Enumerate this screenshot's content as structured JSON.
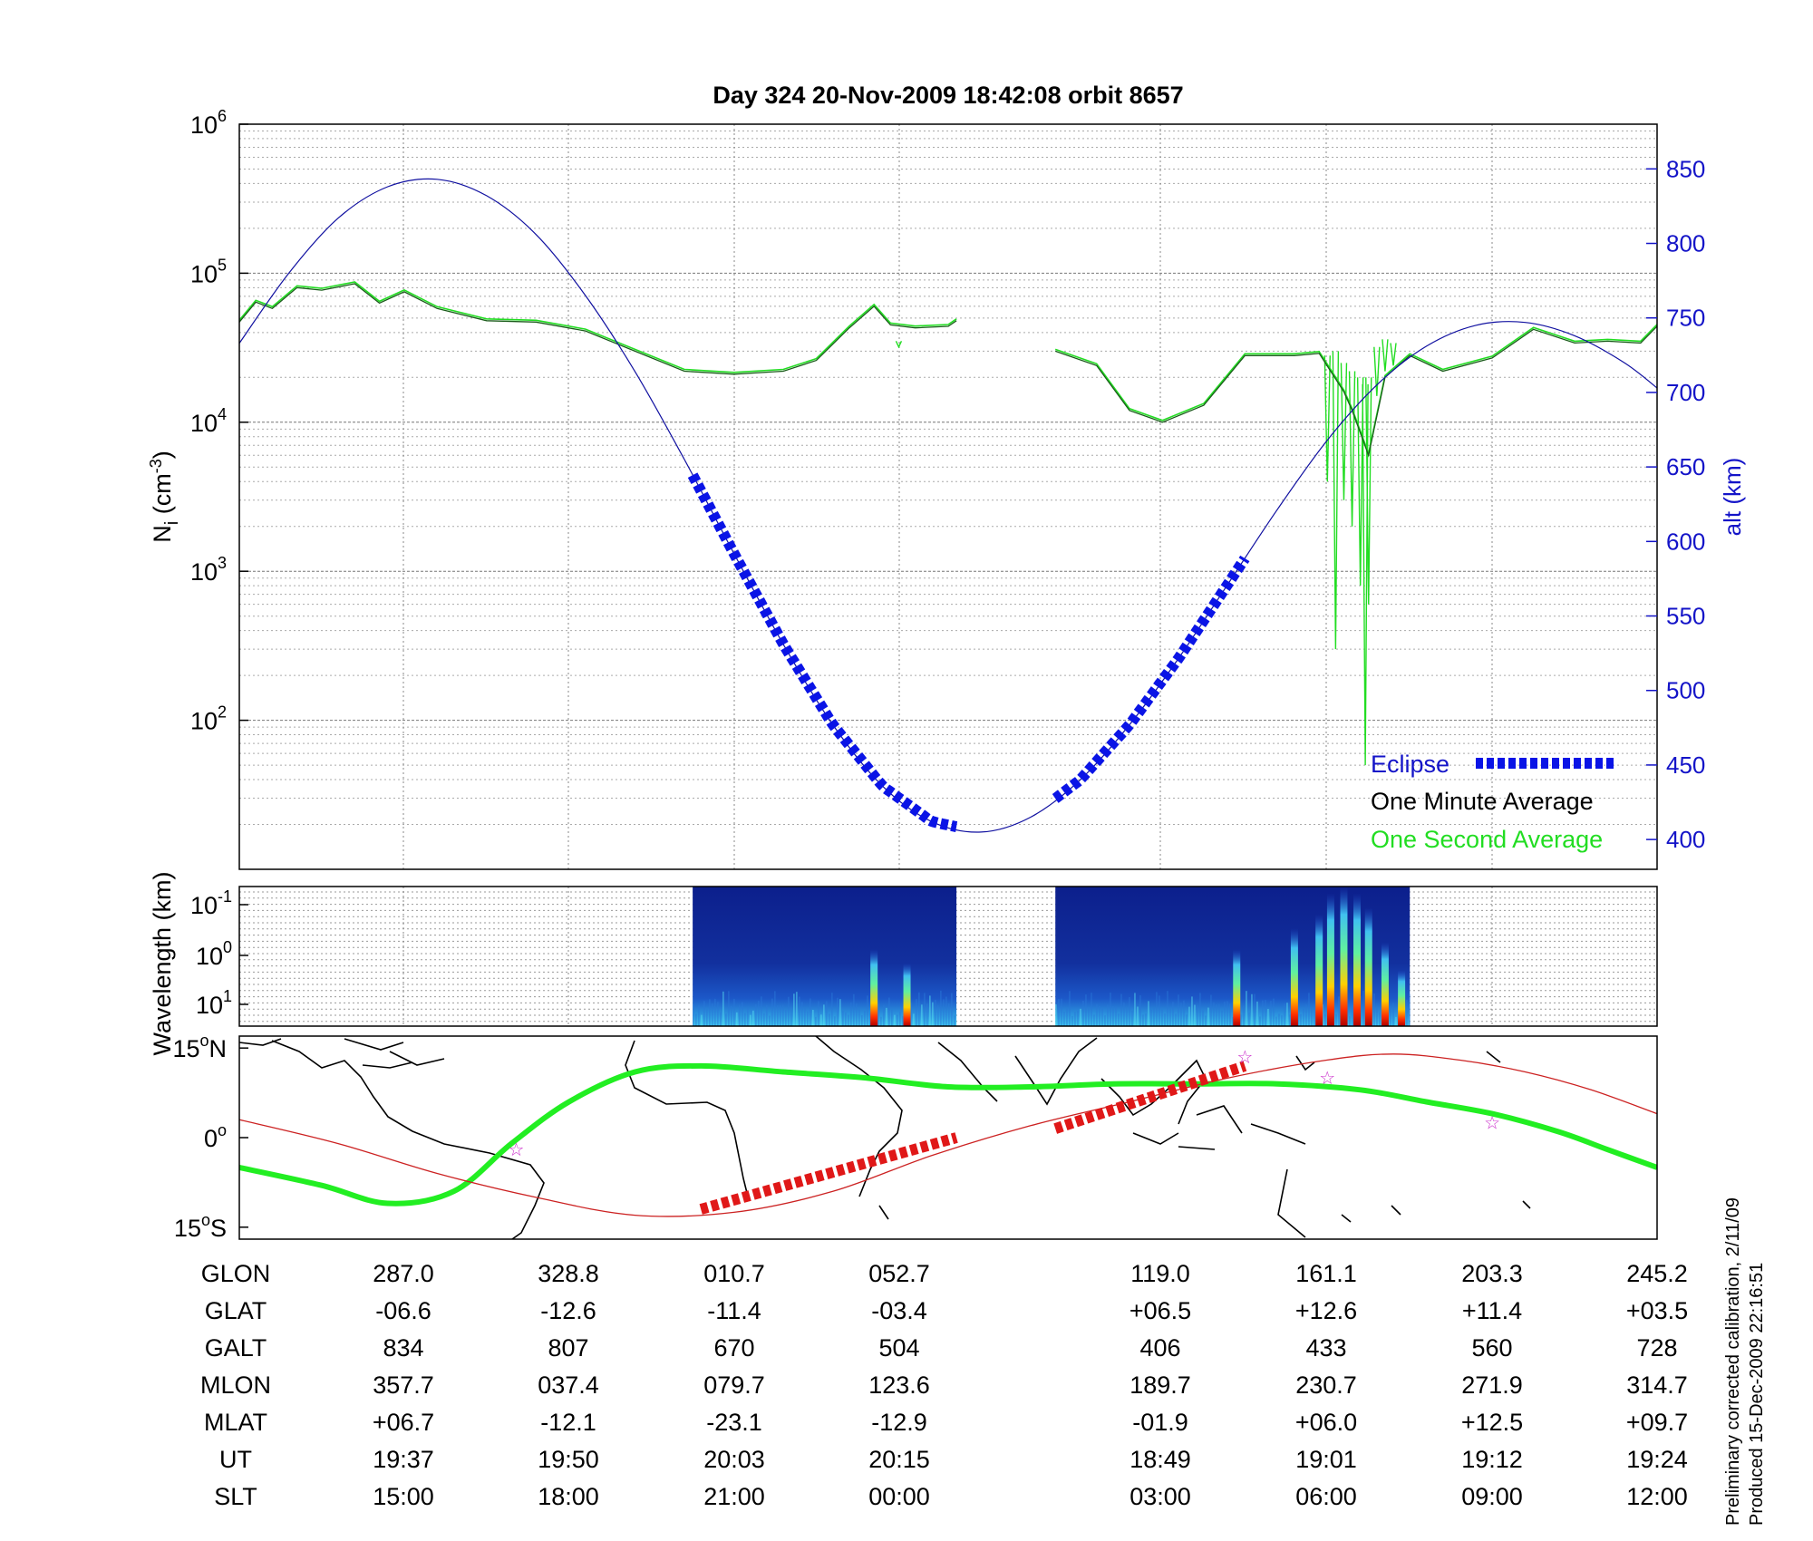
{
  "title": "Day 324  20-Nov-2009 18:42:08   orbit 8657",
  "colors": {
    "density_minute": "#1a5c1a",
    "density_second": "#22dd22",
    "altitude": "#1010a0",
    "eclipse": "#0a14e6",
    "track": "#22ee22",
    "dip_equator": "#cc2222",
    "track_eclipse": "#e01818",
    "star": "#cc33cc"
  },
  "chart_data": [
    {
      "type": "line",
      "panel": "ion density / altitude",
      "ylabel": "N",
      "ylabel_sub": "i",
      "ylabel_unit_pre": " (cm",
      "ylabel_unit_sup": "-3",
      "ylabel_unit_post": ")",
      "yscale": "log",
      "ylim": [
        10,
        1000000
      ],
      "yticks": [
        {
          "base": "10",
          "exp": "2",
          "value": 100
        },
        {
          "base": "10",
          "exp": "3",
          "value": 1000
        },
        {
          "base": "10",
          "exp": "4",
          "value": 10000
        },
        {
          "base": "10",
          "exp": "5",
          "value": 100000
        },
        {
          "base": "10",
          "exp": "6",
          "value": 1000000
        }
      ],
      "y2label": "alt (km)",
      "y2lim": [
        380,
        880
      ],
      "y2ticks": [
        "400",
        "450",
        "500",
        "550",
        "600",
        "650",
        "700",
        "750",
        "800",
        "850"
      ],
      "x_label": "UT",
      "xlim": [
        0,
        8.6
      ],
      "grid": true,
      "legend_position": "bottom-right",
      "legend": {
        "eclipse": "Eclipse",
        "minute": "One Minute Average",
        "second": "One Second Average"
      },
      "series": [
        {
          "name": "One Minute Average",
          "segments": [
            [
              [
                0,
                47000
              ],
              [
                0.1,
                64000
              ],
              [
                0.2,
                58000
              ],
              [
                0.35,
                80000
              ],
              [
                0.5,
                77000
              ],
              [
                0.7,
                85000
              ],
              [
                0.85,
                63000
              ],
              [
                1.0,
                75000
              ],
              [
                1.2,
                58000
              ],
              [
                1.5,
                48000
              ],
              [
                1.8,
                47000
              ],
              [
                2.1,
                41000
              ],
              [
                2.4,
                30000
              ],
              [
                2.7,
                22000
              ],
              [
                3.0,
                21000
              ],
              [
                3.3,
                22000
              ],
              [
                3.5,
                26000
              ],
              [
                3.7,
                43000
              ],
              [
                3.85,
                60000
              ],
              [
                3.95,
                45000
              ],
              [
                4.1,
                43000
              ],
              [
                4.3,
                44000
              ],
              [
                4.35,
                48000
              ]
            ],
            [
              [
                4.95,
                30000
              ],
              [
                5.2,
                24000
              ],
              [
                5.4,
                12000
              ],
              [
                5.6,
                10000
              ],
              [
                5.85,
                13000
              ],
              [
                6.1,
                28000
              ],
              [
                6.4,
                28000
              ],
              [
                6.55,
                29000
              ],
              [
                6.7,
                16000
              ],
              [
                6.75,
                12000
              ],
              [
                6.85,
                6000
              ],
              [
                6.95,
                20000
              ],
              [
                7.1,
                28000
              ],
              [
                7.3,
                22000
              ],
              [
                7.6,
                27000
              ],
              [
                7.85,
                42000
              ],
              [
                8.1,
                34000
              ],
              [
                8.3,
                35000
              ],
              [
                8.5,
                34000
              ],
              [
                8.6,
                44000
              ]
            ]
          ]
        },
        {
          "name": "One Second Average",
          "spikes": [
            [
              4.0,
              35000,
              32000
            ],
            [
              6.6,
              28000,
              4000
            ],
            [
              6.65,
              30000,
              300
            ],
            [
              6.7,
              25000,
              3000
            ],
            [
              6.75,
              22000,
              2000
            ],
            [
              6.8,
              20000,
              800
            ],
            [
              6.83,
              18000,
              50
            ],
            [
              6.85,
              20000,
              600
            ],
            [
              6.9,
              32000,
              15000
            ],
            [
              6.95,
              36000,
              22000
            ],
            [
              7.0,
              34000,
              24000
            ]
          ]
        },
        {
          "name": "Altitude",
          "axis": "y2",
          "x": [
            0,
            0.3,
            0.6,
            0.9,
            1.2,
            1.5,
            1.8,
            2.1,
            2.4,
            2.7,
            3.0,
            3.3,
            3.6,
            3.9,
            4.2,
            4.5,
            4.8,
            5.1,
            5.4,
            5.7,
            6.0,
            6.3,
            6.6,
            6.9,
            7.2,
            7.5,
            7.8,
            8.1,
            8.4,
            8.6
          ],
          "values": [
            733,
            780,
            817,
            838,
            843,
            832,
            806,
            765,
            714,
            655,
            592,
            531,
            477,
            436,
            412,
            405,
            415,
            440,
            477,
            522,
            572,
            622,
            668,
            705,
            731,
            745,
            747,
            738,
            720,
            703
          ]
        },
        {
          "name": "Eclipse",
          "segments": [
            [
              2.75,
              4.35
            ],
            [
              4.95,
              6.1
            ]
          ]
        }
      ]
    },
    {
      "type": "heatmap",
      "panel": "wavelength spectrogram",
      "ylabel": "Wavelength (km)",
      "yticks": [
        {
          "base": "10",
          "exp": "-1"
        },
        {
          "base": "10",
          "exp": "0"
        },
        {
          "base": "10",
          "exp": "1"
        }
      ],
      "blocks": [
        [
          2.75,
          4.35
        ],
        [
          4.95,
          7.1
        ]
      ],
      "bright_features": [
        [
          3.85,
          0.55
        ],
        [
          4.05,
          0.45
        ],
        [
          6.05,
          0.55
        ],
        [
          6.4,
          0.7
        ],
        [
          6.55,
          0.8
        ],
        [
          6.62,
          0.95
        ],
        [
          6.7,
          1.0
        ],
        [
          6.78,
          0.95
        ],
        [
          6.85,
          0.85
        ],
        [
          6.95,
          0.6
        ],
        [
          7.05,
          0.4
        ]
      ]
    },
    {
      "type": "line",
      "panel": "map",
      "ylim": [
        -17,
        17
      ],
      "yticks": [
        {
          "value": 15,
          "label": "15",
          "deg": "o",
          "suffix": "N"
        },
        {
          "value": 0,
          "label": "0",
          "deg": "o",
          "suffix": ""
        },
        {
          "value": -15,
          "label": "15",
          "deg": "o",
          "suffix": "S"
        }
      ],
      "series": [
        {
          "name": "track",
          "x": [
            0,
            0.5,
            0.9,
            1.3,
            1.65,
            2.0,
            2.4,
            2.8,
            3.3,
            3.8,
            4.3,
            4.8,
            5.3,
            5.8,
            6.3,
            6.8,
            7.2,
            7.6,
            8.0,
            8.3,
            8.6
          ],
          "values": [
            -5,
            -8,
            -11,
            -9,
            -1,
            6,
            11,
            12,
            11,
            10,
            8.5,
            8.5,
            9,
            9,
            9,
            8,
            6,
            4,
            1,
            -2,
            -5
          ]
        },
        {
          "name": "dip_equator",
          "x": [
            0,
            0.6,
            1.2,
            1.8,
            2.4,
            3.0,
            3.6,
            4.2,
            4.8,
            5.4,
            6.0,
            6.6,
            7.0,
            7.4,
            7.8,
            8.2,
            8.6
          ],
          "values": [
            3,
            -1,
            -6,
            -10,
            -13,
            -12.5,
            -9,
            -3,
            2,
            6,
            10,
            13,
            14,
            13,
            11,
            8,
            4
          ]
        }
      ],
      "eclipse_segments": [
        [
          [
            2.8,
            -12
          ],
          [
            4.35,
            0
          ]
        ],
        [
          [
            4.95,
            1.5
          ],
          [
            6.1,
            12
          ]
        ]
      ],
      "stars": [
        [
          1.68,
          -2
        ],
        [
          6.1,
          13.5
        ],
        [
          6.6,
          10
        ],
        [
          7.6,
          2.5
        ]
      ]
    }
  ],
  "table": {
    "rows": [
      {
        "label": "GLON",
        "values": [
          "287.0",
          "328.8",
          "010.7",
          "052.7",
          "119.0",
          "161.1",
          "203.3",
          "245.2"
        ]
      },
      {
        "label": "GLAT",
        "values": [
          "-06.6",
          "-12.6",
          "-11.4",
          "-03.4",
          "+06.5",
          "+12.6",
          "+11.4",
          "+03.5"
        ]
      },
      {
        "label": "GALT",
        "values": [
          "834",
          "807",
          "670",
          "504",
          "406",
          "433",
          "560",
          "728"
        ]
      },
      {
        "label": "MLON",
        "values": [
          "357.7",
          "037.4",
          "079.7",
          "123.6",
          "189.7",
          "230.7",
          "271.9",
          "314.7"
        ]
      },
      {
        "label": "MLAT",
        "values": [
          "+06.7",
          "-12.1",
          "-23.1",
          "-12.9",
          "-01.9",
          "+06.0",
          "+12.5",
          "+09.7"
        ]
      },
      {
        "label": "UT",
        "values": [
          "19:37",
          "19:50",
          "20:03",
          "20:15",
          "18:49",
          "19:01",
          "19:12",
          "19:24"
        ]
      },
      {
        "label": "SLT",
        "values": [
          "15:00",
          "18:00",
          "21:00",
          "00:00",
          "03:00",
          "06:00",
          "09:00",
          "12:00"
        ]
      }
    ]
  },
  "side_note": {
    "line1": "Preliminary corrected calibration, 2/11/09",
    "line2": "Produced 15-Dec-2009 22:16:51"
  }
}
